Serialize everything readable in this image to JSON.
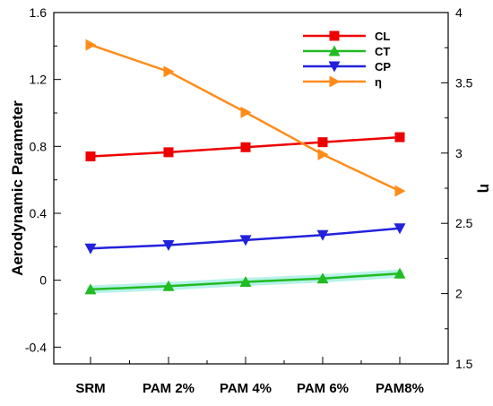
{
  "chart_data": {
    "type": "line",
    "categories": [
      "SRM",
      "PAM 2%",
      "PAM 4%",
      "PAM 6%",
      "PAM8%"
    ],
    "ylabel": "Aerodynamic Parameter",
    "y2label": "η",
    "ylim": [
      -0.5,
      1.6
    ],
    "yticks": [
      "-0.4",
      "0",
      "0.4",
      "0.8",
      "1.2",
      "1.6"
    ],
    "y2lim": [
      1.5,
      4
    ],
    "y2ticks": [
      "1.5",
      "2",
      "2.5",
      "3",
      "3.5",
      "4"
    ],
    "grid": false,
    "legend_position": "top-right",
    "series": [
      {
        "name": "CL",
        "axis": "left",
        "color": "#ee0000",
        "marker": "square",
        "values": [
          0.74,
          0.765,
          0.795,
          0.825,
          0.855
        ]
      },
      {
        "name": "CT",
        "axis": "left",
        "color": "#22bb22",
        "marker": "triangle-up",
        "values": [
          -0.055,
          -0.035,
          -0.01,
          0.01,
          0.04
        ]
      },
      {
        "name": "CP",
        "axis": "left",
        "color": "#2222dd",
        "marker": "triangle-down",
        "values": [
          0.19,
          0.21,
          0.24,
          0.27,
          0.31
        ]
      },
      {
        "name": "η",
        "axis": "right",
        "color": "#ff8c1a",
        "marker": "triangle-right",
        "values": [
          3.77,
          3.58,
          3.29,
          2.99,
          2.73
        ]
      }
    ]
  }
}
